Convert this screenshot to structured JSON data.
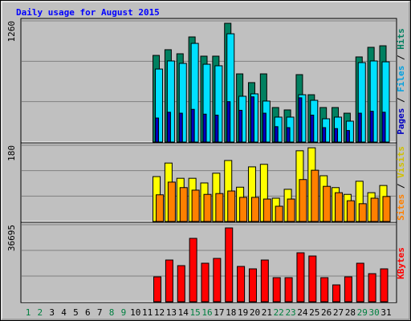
{
  "chart_data": [
    {
      "type": "bar",
      "title": "Daily usage for August 2015",
      "ylim": [
        0,
        1260
      ],
      "yticks": [
        1260
      ],
      "series": [
        {
          "name": "Hits",
          "color": "#008060",
          "values": [
            null,
            null,
            null,
            null,
            null,
            null,
            null,
            null,
            null,
            null,
            null,
            901,
            960,
            918,
            1093,
            893,
            893,
            1235,
            709,
            618,
            709,
            359,
            334,
            701,
            492,
            359,
            359,
            300,
            885,
            985,
            1001
          ]
        },
        {
          "name": "Files",
          "color": "#00E0FF",
          "values": [
            null,
            null,
            null,
            null,
            null,
            null,
            null,
            null,
            null,
            null,
            null,
            759,
            843,
            818,
            1026,
            809,
            793,
            1126,
            476,
            501,
            426,
            259,
            259,
            492,
            434,
            242,
            259,
            217,
            826,
            843,
            834
          ]
        },
        {
          "name": "Pages",
          "color": "#0000C0",
          "values": [
            null,
            null,
            null,
            null,
            null,
            null,
            null,
            null,
            null,
            null,
            null,
            250,
            310,
            300,
            340,
            290,
            280,
            420,
            330,
            470,
            300,
            160,
            150,
            460,
            280,
            150,
            140,
            120,
            300,
            320,
            310
          ]
        }
      ]
    },
    {
      "type": "bar",
      "ylim": [
        0,
        180
      ],
      "yticks": [
        180
      ],
      "series": [
        {
          "name": "Visits",
          "color": "#FFFF00",
          "values": [
            null,
            null,
            null,
            null,
            null,
            null,
            null,
            null,
            null,
            null,
            null,
            106,
            138,
            102,
            102,
            91,
            114,
            144,
            81,
            129,
            135,
            55,
            76,
            167,
            174,
            108,
            80,
            64,
            95,
            68,
            85
          ]
        },
        {
          "name": "Sites",
          "color": "#FF8000",
          "values": [
            null,
            null,
            null,
            null,
            null,
            null,
            null,
            null,
            null,
            null,
            null,
            63,
            93,
            80,
            74,
            64,
            66,
            72,
            57,
            57,
            53,
            36,
            53,
            99,
            121,
            83,
            68,
            49,
            42,
            55,
            59
          ]
        }
      ]
    },
    {
      "type": "bar",
      "ylim": [
        0,
        36695
      ],
      "yticks": [
        36695
      ],
      "categories": [
        "1",
        "2",
        "3",
        "4",
        "5",
        "6",
        "7",
        "8",
        "9",
        "10",
        "11",
        "12",
        "13",
        "14",
        "15",
        "16",
        "17",
        "18",
        "19",
        "20",
        "21",
        "22",
        "23",
        "24",
        "25",
        "26",
        "27",
        "28",
        "29",
        "30",
        "31"
      ],
      "category_colors": [
        "#008040",
        "#008040",
        "#000000",
        "#000000",
        "#000000",
        "#000000",
        "#000000",
        "#008040",
        "#008040",
        "#000000",
        "#000000",
        "#000000",
        "#000000",
        "#000000",
        "#008040",
        "#008040",
        "#000000",
        "#000000",
        "#000000",
        "#000000",
        "#000000",
        "#008040",
        "#008040",
        "#000000",
        "#000000",
        "#000000",
        "#000000",
        "#000000",
        "#008040",
        "#008040",
        "#000000"
      ],
      "series": [
        {
          "name": "KBytes",
          "color": "#FF0000",
          "values": [
            null,
            null,
            null,
            null,
            null,
            null,
            null,
            null,
            null,
            null,
            null,
            11850,
            19876,
            17201,
            30197,
            18348,
            20641,
            35166,
            16819,
            15672,
            19876,
            11467,
            11467,
            23317,
            21788,
            11467,
            8027,
            11850,
            18348,
            13378,
            15672
          ]
        }
      ]
    }
  ]
}
